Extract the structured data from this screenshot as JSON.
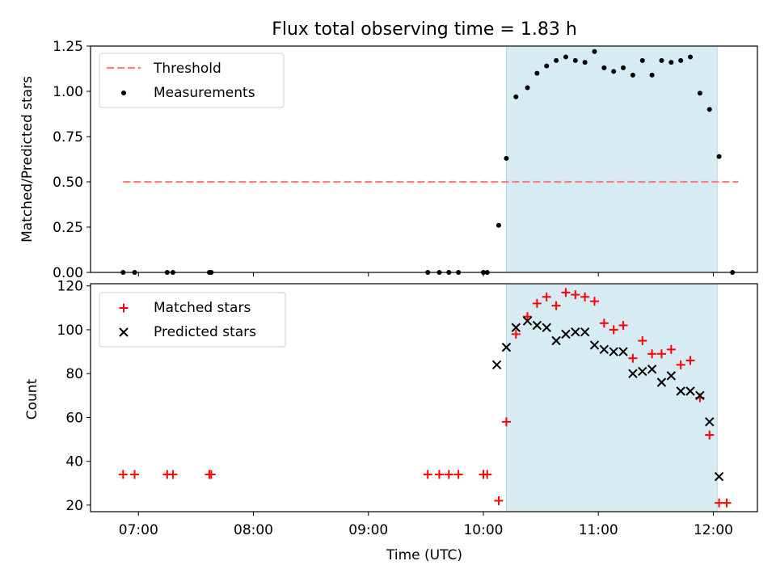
{
  "title": "Flux total observing time = 1.83 h",
  "chart_data": [
    {
      "type": "scatter",
      "panel": "top",
      "ylabel": "Matched/Predicted stars",
      "ylim": [
        0,
        1.25
      ],
      "yticks": [
        "0.00",
        "0.25",
        "0.50",
        "0.75",
        "1.00",
        "1.25"
      ],
      "grid": false,
      "legend_position": "top-left",
      "observing_window": {
        "start": "10:12",
        "end": "12:02"
      },
      "threshold": {
        "name": "Threshold",
        "color": "#ff7f7f",
        "value": 0.5,
        "x_range": [
          "06:52",
          "12:13"
        ]
      },
      "series": [
        {
          "name": "Measurements",
          "color": "#000000",
          "points": [
            [
              "06:52",
              0.0
            ],
            [
              "06:58",
              0.0
            ],
            [
              "07:15",
              0.0
            ],
            [
              "07:18",
              0.0
            ],
            [
              "07:37",
              0.0
            ],
            [
              "07:38",
              0.0
            ],
            [
              "09:31",
              0.0
            ],
            [
              "09:37",
              0.0
            ],
            [
              "09:42",
              0.0
            ],
            [
              "09:47",
              0.0
            ],
            [
              "10:00",
              0.0
            ],
            [
              "10:02",
              0.0
            ],
            [
              "10:08",
              0.26
            ],
            [
              "10:12",
              0.63
            ],
            [
              "10:17",
              0.97
            ],
            [
              "10:23",
              1.02
            ],
            [
              "10:28",
              1.1
            ],
            [
              "10:33",
              1.14
            ],
            [
              "10:38",
              1.17
            ],
            [
              "10:43",
              1.19
            ],
            [
              "10:48",
              1.17
            ],
            [
              "10:53",
              1.16
            ],
            [
              "10:58",
              1.22
            ],
            [
              "11:03",
              1.13
            ],
            [
              "11:08",
              1.11
            ],
            [
              "11:13",
              1.13
            ],
            [
              "11:18",
              1.09
            ],
            [
              "11:23",
              1.17
            ],
            [
              "11:28",
              1.09
            ],
            [
              "11:33",
              1.17
            ],
            [
              "11:38",
              1.16
            ],
            [
              "11:43",
              1.17
            ],
            [
              "11:48",
              1.19
            ],
            [
              "11:53",
              0.99
            ],
            [
              "11:58",
              0.9
            ],
            [
              "12:03",
              0.64
            ],
            [
              "12:10",
              0.0
            ]
          ]
        }
      ]
    },
    {
      "type": "scatter",
      "panel": "bottom",
      "xlabel": "Time (UTC)",
      "ylabel": "Count",
      "ylim": [
        17,
        121
      ],
      "yticks": [
        "20",
        "40",
        "60",
        "80",
        "100",
        "120"
      ],
      "xlim": [
        "06:35",
        "12:23"
      ],
      "xticks": [
        "07:00",
        "08:00",
        "09:00",
        "10:00",
        "11:00",
        "12:00"
      ],
      "grid": false,
      "legend_position": "top-left",
      "observing_window": {
        "start": "10:12",
        "end": "12:02"
      },
      "series": [
        {
          "name": "Matched stars",
          "marker": "plus",
          "color": "#ff0000",
          "points": [
            [
              "06:52",
              34
            ],
            [
              "06:58",
              34
            ],
            [
              "07:15",
              34
            ],
            [
              "07:18",
              34
            ],
            [
              "07:37",
              34
            ],
            [
              "07:38",
              34
            ],
            [
              "09:31",
              34
            ],
            [
              "09:37",
              34
            ],
            [
              "09:42",
              34
            ],
            [
              "09:47",
              34
            ],
            [
              "10:00",
              34
            ],
            [
              "10:02",
              34
            ],
            [
              "10:08",
              22
            ],
            [
              "10:12",
              58
            ],
            [
              "10:17",
              98
            ],
            [
              "10:23",
              106
            ],
            [
              "10:28",
              112
            ],
            [
              "10:33",
              115
            ],
            [
              "10:38",
              111
            ],
            [
              "10:43",
              117
            ],
            [
              "10:48",
              116
            ],
            [
              "10:53",
              115
            ],
            [
              "10:58",
              113
            ],
            [
              "11:03",
              103
            ],
            [
              "11:08",
              100
            ],
            [
              "11:13",
              102
            ],
            [
              "11:18",
              87
            ],
            [
              "11:23",
              95
            ],
            [
              "11:28",
              89
            ],
            [
              "11:33",
              89
            ],
            [
              "11:38",
              91
            ],
            [
              "11:43",
              84
            ],
            [
              "11:48",
              86
            ],
            [
              "11:53",
              69
            ],
            [
              "11:58",
              52
            ],
            [
              "12:03",
              21
            ],
            [
              "12:07",
              21
            ]
          ]
        },
        {
          "name": "Predicted stars",
          "marker": "x",
          "color": "#000000",
          "points": [
            [
              "10:07",
              84
            ],
            [
              "10:12",
              92
            ],
            [
              "10:17",
              101
            ],
            [
              "10:23",
              104
            ],
            [
              "10:28",
              102
            ],
            [
              "10:33",
              101
            ],
            [
              "10:38",
              95
            ],
            [
              "10:43",
              98
            ],
            [
              "10:48",
              99
            ],
            [
              "10:53",
              99
            ],
            [
              "10:58",
              93
            ],
            [
              "11:03",
              91
            ],
            [
              "11:08",
              90
            ],
            [
              "11:13",
              90
            ],
            [
              "11:18",
              80
            ],
            [
              "11:23",
              81
            ],
            [
              "11:28",
              82
            ],
            [
              "11:33",
              76
            ],
            [
              "11:38",
              79
            ],
            [
              "11:43",
              72
            ],
            [
              "11:48",
              72
            ],
            [
              "11:53",
              70
            ],
            [
              "11:58",
              58
            ],
            [
              "12:03",
              33
            ]
          ]
        }
      ]
    }
  ]
}
